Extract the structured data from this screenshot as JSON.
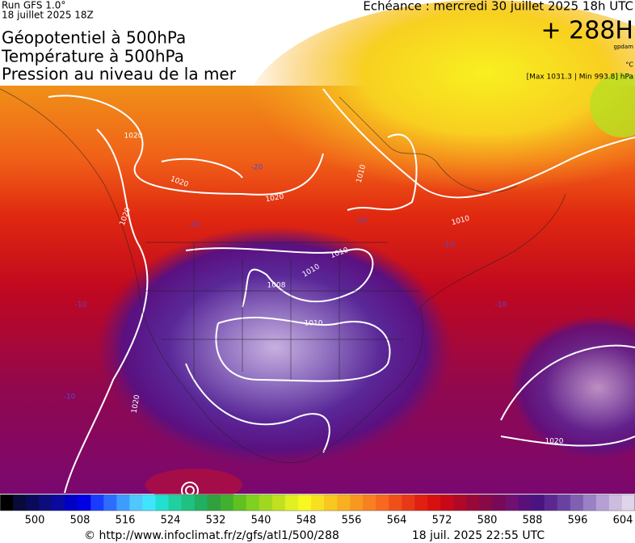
{
  "header": {
    "run": "Run GFS 1.0°",
    "run_date": "18 juillet 2025 18Z",
    "titles": [
      "Géopotentiel à 500hPa",
      "Température à 500hPa",
      "Pression au niveau de la mer"
    ],
    "valid": "Echéance : mercredi 30 juillet 2025 18h UTC",
    "lead": "+ 288H",
    "unit_geo": "gpdam",
    "unit_temp": "°C",
    "pressure_range": "[Max 1031.3 | Min 993.8] hPa"
  },
  "map": {
    "labels": [
      "1020",
      "1020",
      "1020",
      "1020",
      "-20",
      "-10",
      "-10",
      "-10",
      "-10",
      "-10",
      "-10",
      "1010",
      "1010",
      "1010",
      "1010",
      "1008",
      "1010",
      "1020",
      "1020"
    ]
  },
  "colorbar": {
    "ticks": [
      500,
      508,
      516,
      524,
      532,
      540,
      548,
      556,
      564,
      572,
      580,
      588,
      596,
      604
    ],
    "colors": [
      "#000000",
      "#0a0a3a",
      "#0a0a5a",
      "#0c0c7c",
      "#0a0aa0",
      "#0000c4",
      "#0000e6",
      "#1a3cff",
      "#2e6cff",
      "#3e9cff",
      "#50c8ff",
      "#40e4ff",
      "#20e0d0",
      "#20d0a0",
      "#20c080",
      "#20b060",
      "#30a040",
      "#40b030",
      "#60c020",
      "#80d020",
      "#a0d820",
      "#c0e020",
      "#e0f020",
      "#f8f820",
      "#f8e020",
      "#f8c820",
      "#f8b020",
      "#f89820",
      "#f88020",
      "#f86820",
      "#f05018",
      "#e83818",
      "#e02010",
      "#d81010",
      "#c80818",
      "#b00828",
      "#980838",
      "#880848",
      "#780858",
      "#701070",
      "#5a107a",
      "#4a1480",
      "#5a2890",
      "#6a40a0",
      "#8060b0",
      "#9a80c4",
      "#b4a0d4",
      "#ccbce0",
      "#e0d4ea"
    ]
  },
  "footer": {
    "url": "© http://www.infoclimat.fr/z/gfs/atl1/500/288",
    "stamp": "18 juil. 2025 22:55 UTC"
  }
}
